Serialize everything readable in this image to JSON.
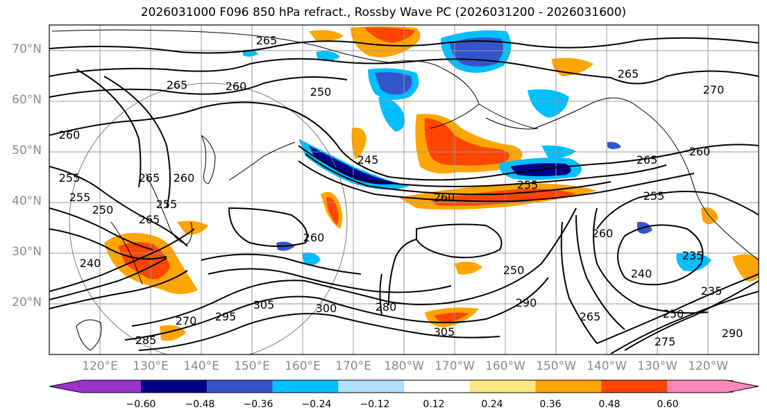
{
  "title": "2026031000 F096 850 hPa refract., Rossby Wave PC (2026031200 - 2026031600)",
  "lat_labels": [
    "70°N",
    "60°N",
    "50°N",
    "40°N",
    "30°N",
    "20°N"
  ],
  "lon_labels": [
    "120°E",
    "130°E",
    "140°E",
    "150°E",
    "160°E",
    "170°E",
    "180°W",
    "170°W",
    "160°W",
    "150°W",
    "140°W",
    "130°W",
    "120°W"
  ],
  "colorbar": {
    "colors": [
      "#9933cc",
      "#00008b",
      "#3355cc",
      "#00bfff",
      "#b0e0ff",
      "#ffffff",
      "#ffe680",
      "#ffa500",
      "#ff4500",
      "#b22222",
      "#ff88b8"
    ],
    "ticks": [
      "−0.60",
      "−0.48",
      "−0.36",
      "−0.24",
      "−0.12",
      "0.12",
      "0.24",
      "0.36",
      "0.48",
      "0.60"
    ]
  },
  "contour_labels": [
    "265",
    "260",
    "265",
    "250",
    "265",
    "265",
    "260",
    "255",
    "255",
    "260",
    "265",
    "260",
    "255",
    "245",
    "255",
    "250",
    "260",
    "270",
    "260",
    "255",
    "240",
    "235",
    "235",
    "250",
    "250",
    "260",
    "265",
    "240",
    "305",
    "300",
    "295",
    "285",
    "305",
    "280",
    "275",
    "290",
    "290",
    "270",
    "265"
  ]
}
